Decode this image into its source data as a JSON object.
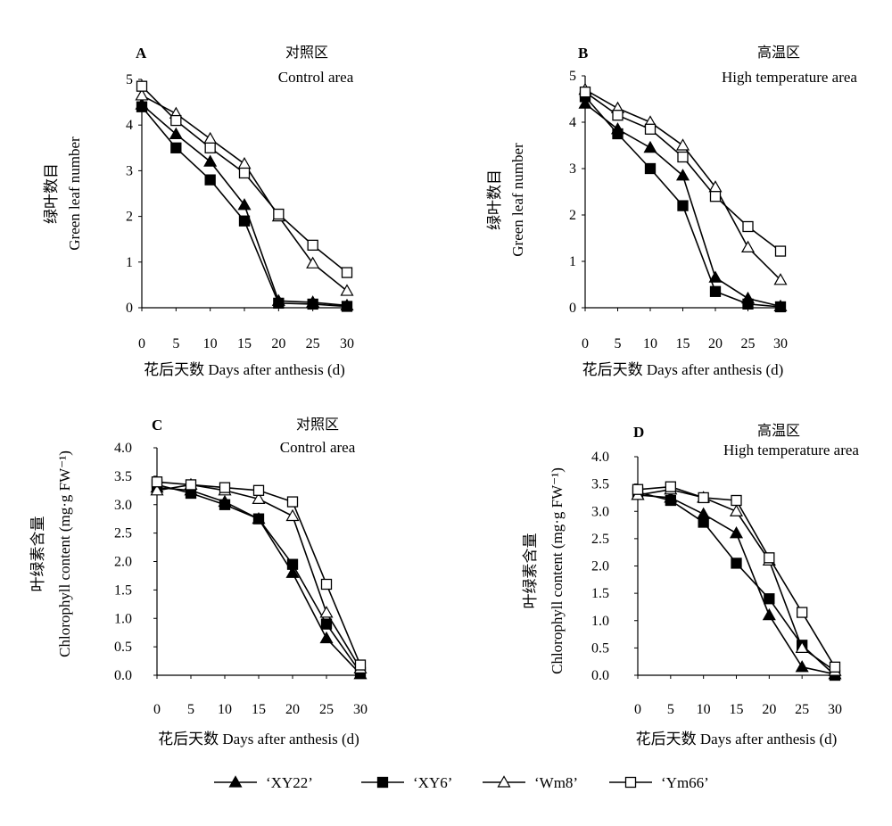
{
  "chart_data": [
    {
      "type": "line",
      "panel_label": "A",
      "title": "对照区",
      "subtitle": "Control area",
      "xlabel": "花后天数 Days after anthesis (d)",
      "ylabel": [
        "绿叶数目",
        "Green leaf number"
      ],
      "x": [
        0,
        5,
        10,
        15,
        20,
        25,
        30
      ],
      "xlim": [
        0,
        30
      ],
      "ylim": [
        0,
        5
      ],
      "yticks": [
        "0",
        "1",
        "2",
        "3",
        "4",
        "5"
      ],
      "grid": false,
      "series": [
        {
          "name": "‘XY22’",
          "values": [
            4.45,
            3.8,
            3.2,
            2.25,
            0.15,
            0.12,
            0.05
          ]
        },
        {
          "name": "‘XY6’",
          "values": [
            4.4,
            3.5,
            2.8,
            1.9,
            0.1,
            0.08,
            0.03
          ]
        },
        {
          "name": "‘Wm8’",
          "values": [
            4.65,
            4.25,
            3.7,
            3.15,
            2.0,
            0.97,
            0.37
          ]
        },
        {
          "name": "‘Ym66’",
          "values": [
            4.85,
            4.1,
            3.5,
            2.95,
            2.05,
            1.37,
            0.77
          ]
        }
      ]
    },
    {
      "type": "line",
      "panel_label": "B",
      "title": "高温区",
      "subtitle": "High temperature area",
      "xlabel": "花后天数 Days after anthesis (d)",
      "ylabel": [
        "绿叶数目",
        "Green leaf number"
      ],
      "x": [
        0,
        5,
        10,
        15,
        20,
        25,
        30
      ],
      "xlim": [
        0,
        30
      ],
      "ylim": [
        0,
        5
      ],
      "yticks": [
        "0",
        "1",
        "2",
        "3",
        "4",
        "5"
      ],
      "grid": false,
      "series": [
        {
          "name": "‘XY22’",
          "values": [
            4.4,
            3.85,
            3.45,
            2.85,
            0.65,
            0.2,
            0.03
          ]
        },
        {
          "name": "‘XY6’",
          "values": [
            4.55,
            3.75,
            3.0,
            2.2,
            0.35,
            0.08,
            0.02
          ]
        },
        {
          "name": "‘Wm8’",
          "values": [
            4.7,
            4.3,
            4.0,
            3.5,
            2.6,
            1.3,
            0.6
          ]
        },
        {
          "name": "‘Ym66’",
          "values": [
            4.65,
            4.15,
            3.85,
            3.25,
            2.4,
            1.75,
            1.22
          ]
        }
      ]
    },
    {
      "type": "line",
      "panel_label": "C",
      "title": "对照区",
      "subtitle": "Control area",
      "xlabel": "花后天数 Days after anthesis (d)",
      "ylabel": [
        "叶绿素含量",
        "Chlorophyll content (mg·g FW⁻¹)"
      ],
      "x": [
        0,
        5,
        10,
        15,
        20,
        25,
        30
      ],
      "xlim": [
        0,
        30
      ],
      "ylim": [
        0,
        4
      ],
      "yticks": [
        "0.0",
        "0.5",
        "1.0",
        "1.5",
        "2.0",
        "2.5",
        "3.0",
        "3.5",
        "4.0"
      ],
      "grid": false,
      "series": [
        {
          "name": "‘XY22’",
          "values": [
            3.3,
            3.25,
            3.05,
            2.75,
            1.8,
            0.65,
            0.02
          ]
        },
        {
          "name": "‘XY6’",
          "values": [
            3.35,
            3.2,
            3.0,
            2.75,
            1.95,
            0.9,
            0.05
          ]
        },
        {
          "name": "‘Wm8’",
          "values": [
            3.25,
            3.35,
            3.25,
            3.1,
            2.8,
            1.1,
            0.12
          ]
        },
        {
          "name": "‘Ym66’",
          "values": [
            3.4,
            3.35,
            3.3,
            3.25,
            3.05,
            1.6,
            0.18
          ]
        }
      ]
    },
    {
      "type": "line",
      "panel_label": "D",
      "title": "高温区",
      "subtitle": "High temperature area",
      "xlabel": "花后天数 Days after anthesis (d)",
      "ylabel": [
        "叶绿素含量",
        "Chlorophyll content (mg·g FW⁻¹)"
      ],
      "x": [
        0,
        5,
        10,
        15,
        20,
        25,
        30
      ],
      "xlim": [
        0,
        30
      ],
      "ylim": [
        0,
        4
      ],
      "yticks": [
        "0.0",
        "0.5",
        "1.0",
        "1.5",
        "2.0",
        "2.5",
        "3.0",
        "3.5",
        "4.0"
      ],
      "grid": false,
      "series": [
        {
          "name": "‘XY22’",
          "values": [
            3.3,
            3.25,
            2.95,
            2.6,
            1.1,
            0.15,
            0.02
          ]
        },
        {
          "name": "‘XY6’",
          "values": [
            3.35,
            3.2,
            2.8,
            2.05,
            1.4,
            0.55,
            0.0
          ]
        },
        {
          "name": "‘Wm8’",
          "values": [
            3.3,
            3.4,
            3.25,
            3.0,
            2.1,
            0.5,
            0.08
          ]
        },
        {
          "name": "‘Ym66’",
          "values": [
            3.4,
            3.45,
            3.25,
            3.2,
            2.15,
            1.15,
            0.15
          ]
        }
      ]
    }
  ],
  "legend": {
    "placement": "bottom-center",
    "items": [
      {
        "label": "‘XY22’",
        "marker": "triangle",
        "filled": true
      },
      {
        "label": "‘XY6’",
        "marker": "square",
        "filled": true
      },
      {
        "label": "‘Wm8’",
        "marker": "triangle",
        "filled": false
      },
      {
        "label": "‘Ym66’",
        "marker": "square",
        "filled": false
      }
    ]
  },
  "series_style": [
    {
      "marker": "triangle",
      "filled": true
    },
    {
      "marker": "square",
      "filled": true
    },
    {
      "marker": "triangle",
      "filled": false
    },
    {
      "marker": "square",
      "filled": false
    }
  ],
  "colors": {
    "line": "#000000",
    "background": "#ffffff"
  }
}
